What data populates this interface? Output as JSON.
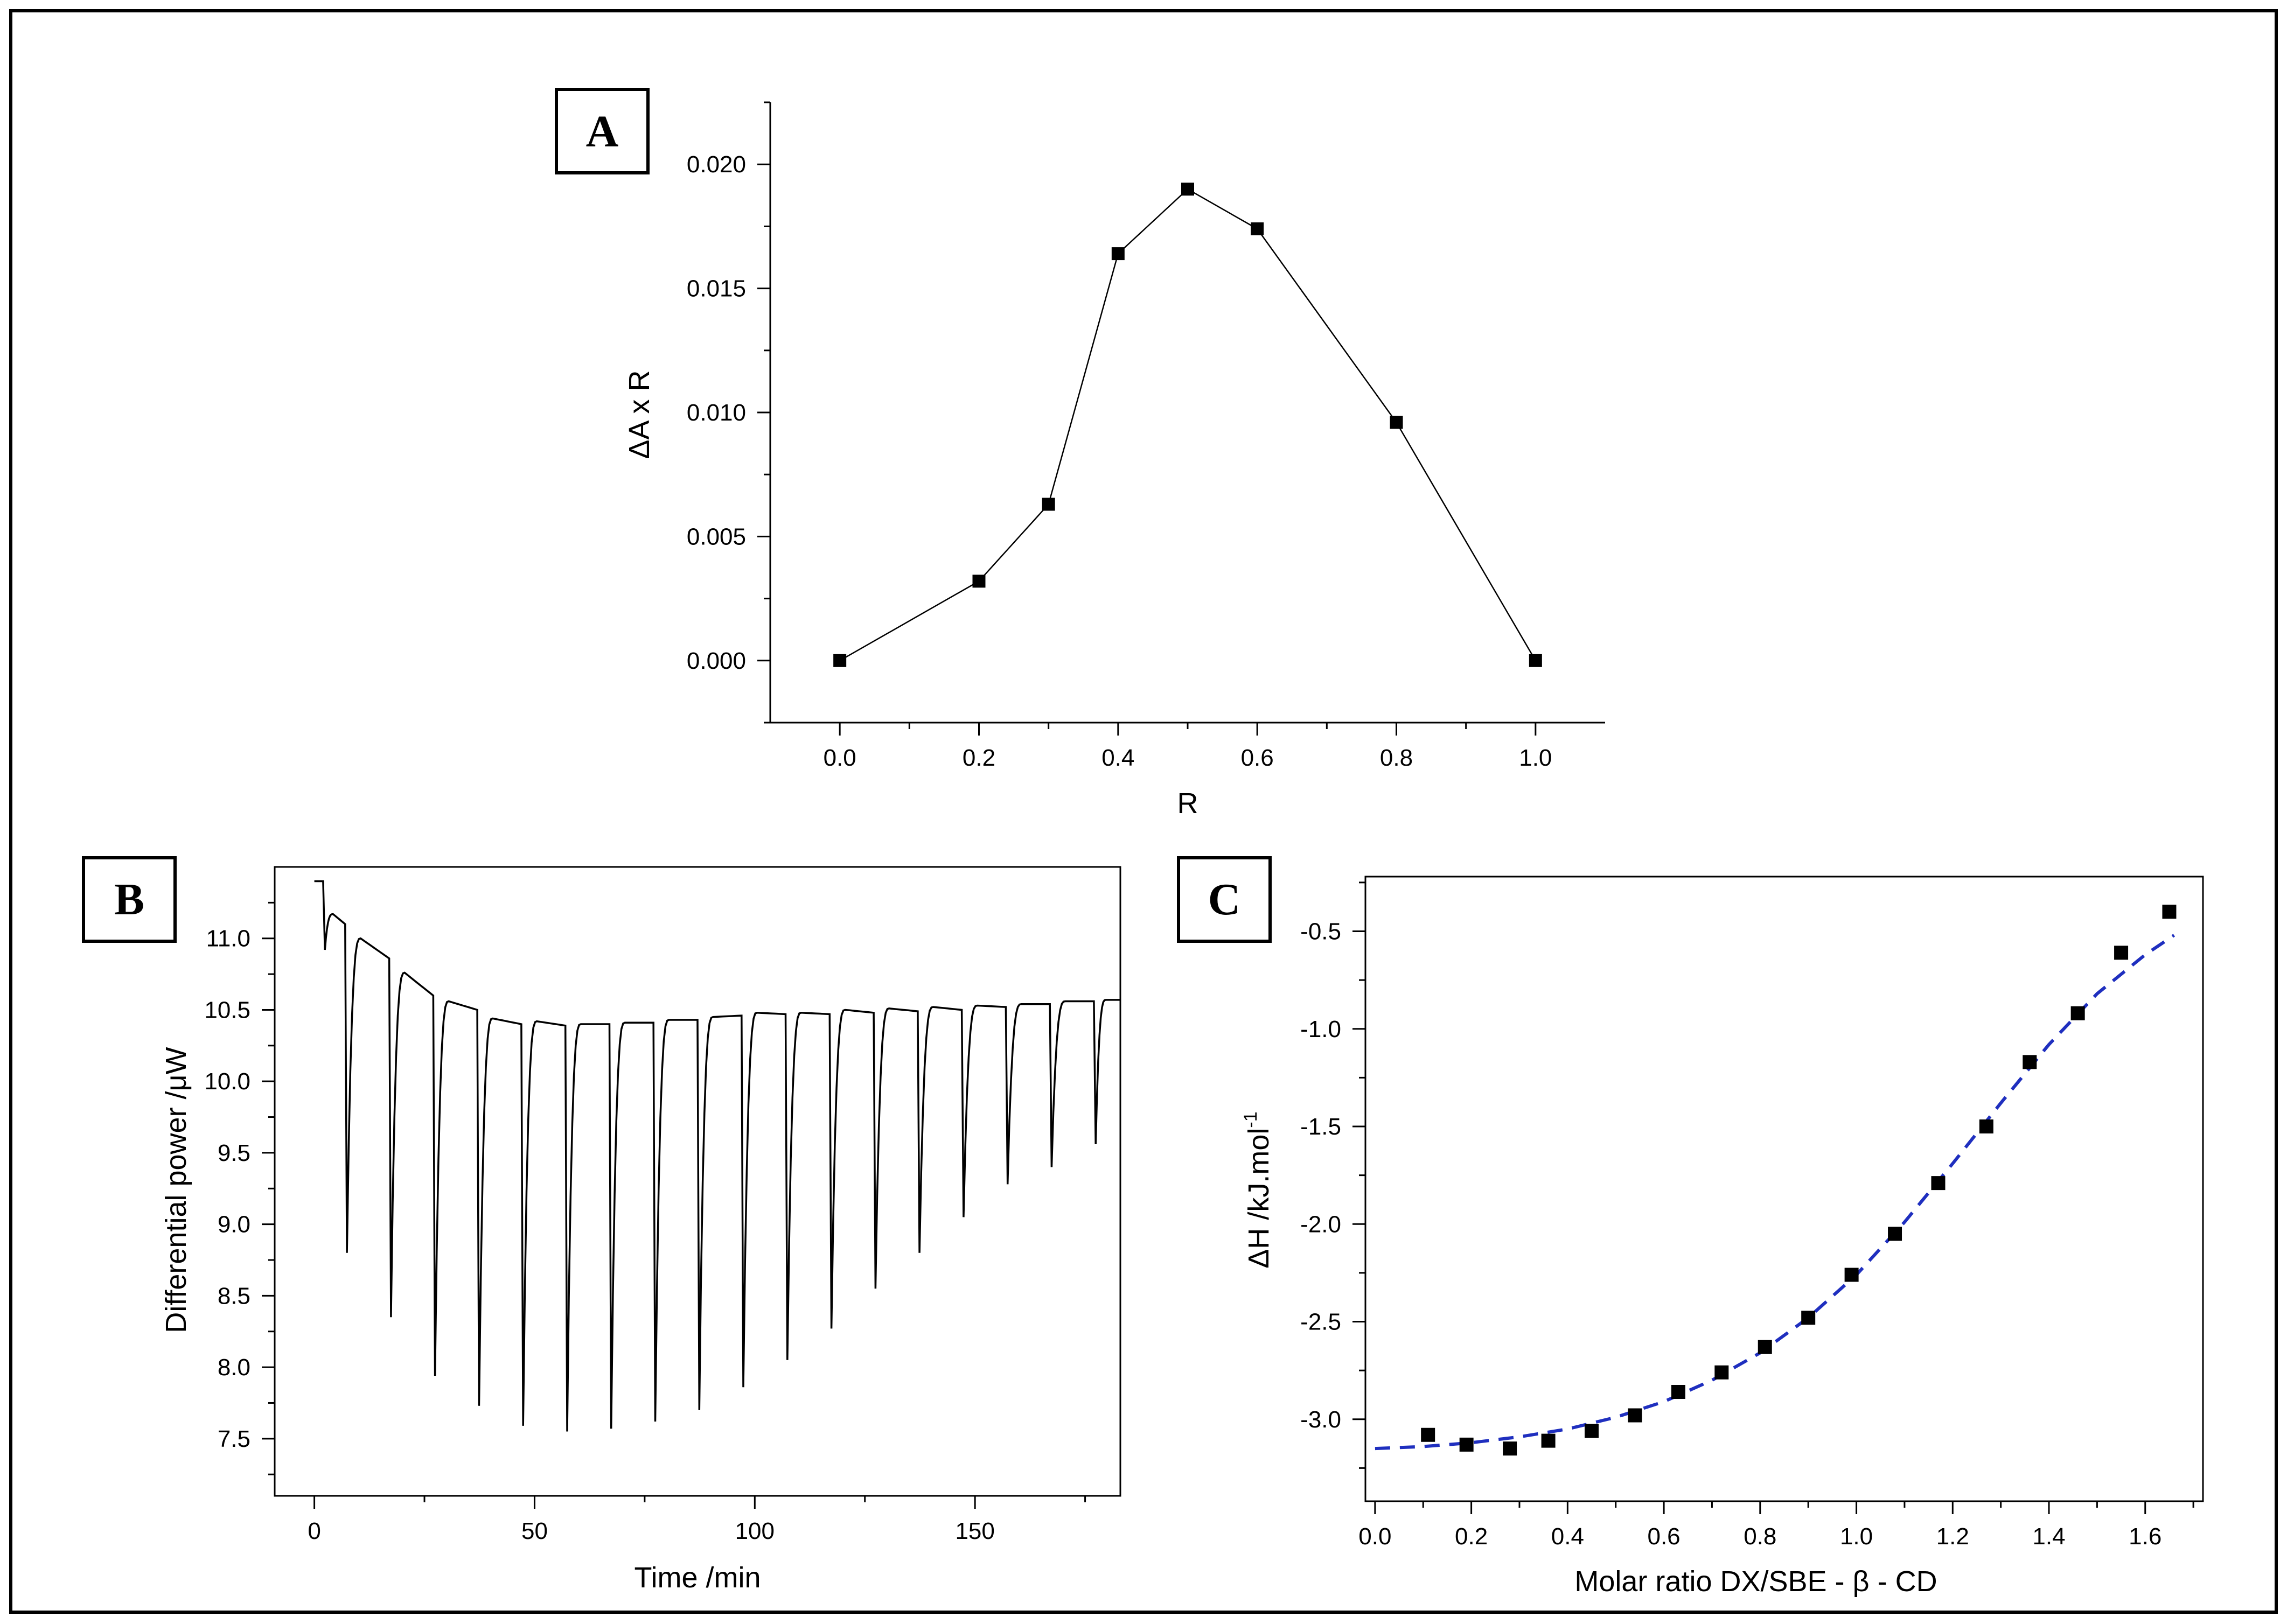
{
  "chart_data": [
    {
      "panel": "A",
      "type": "line",
      "xlabel": "R",
      "ylabel": "ΔA x R",
      "xlim": [
        -0.1,
        1.1
      ],
      "ylim": [
        -0.0025,
        0.0225
      ],
      "xticks": [
        0.0,
        0.2,
        0.4,
        0.6,
        0.8,
        1.0
      ],
      "xtick_labels": [
        "0.0",
        "0.2",
        "0.4",
        "0.6",
        "0.8",
        "1.0"
      ],
      "yticks": [
        0.0,
        0.005,
        0.01,
        0.015,
        0.02
      ],
      "ytick_labels": [
        "0.000",
        "0.005",
        "0.010",
        "0.015",
        "0.020"
      ],
      "x": [
        0.0,
        0.2,
        0.3,
        0.4,
        0.5,
        0.6,
        0.8,
        1.0
      ],
      "y": [
        0.0,
        0.0032,
        0.0063,
        0.0164,
        0.019,
        0.0174,
        0.0096,
        0.0
      ],
      "marker": "square",
      "line_color": "#000000"
    },
    {
      "panel": "B",
      "type": "line",
      "xlabel": "Time /min",
      "ylabel": "Differential power /μW",
      "xlim": [
        -9,
        183
      ],
      "ylim": [
        7.1,
        11.5
      ],
      "xticks": [
        0,
        50,
        100,
        150
      ],
      "xtick_labels": [
        "0",
        "50",
        "100",
        "150"
      ],
      "yticks": [
        7.5,
        8.0,
        8.5,
        9.0,
        9.5,
        10.0,
        10.5,
        11.0
      ],
      "ytick_labels": [
        "7.5",
        "8.0",
        "8.5",
        "9.0",
        "9.5",
        "10.0",
        "10.5",
        "11.0"
      ],
      "baseline_start": 11.4,
      "injection_times": [
        2,
        7,
        17,
        27,
        37,
        47,
        57,
        67,
        77,
        87,
        97,
        107,
        117,
        127,
        137,
        147,
        157,
        167,
        177
      ],
      "peak_minima": [
        10.92,
        8.8,
        8.35,
        7.94,
        7.73,
        7.59,
        7.55,
        7.57,
        7.62,
        7.7,
        7.86,
        8.05,
        8.27,
        8.55,
        8.8,
        9.05,
        9.28,
        9.4,
        9.56
      ],
      "baseline_before_injection": [
        11.4,
        11.1,
        10.86,
        10.6,
        10.5,
        10.4,
        10.39,
        10.4,
        10.41,
        10.43,
        10.46,
        10.47,
        10.47,
        10.48,
        10.49,
        10.5,
        10.52,
        10.54,
        10.56
      ],
      "overshoot_peak": [
        11.17,
        11.0,
        10.76,
        10.56,
        10.44,
        10.42,
        10.4,
        10.41,
        10.43,
        10.45,
        10.48,
        10.48,
        10.5,
        10.51,
        10.52,
        10.53,
        10.54,
        10.56,
        10.57
      ],
      "line_color": "#000000"
    },
    {
      "panel": "C",
      "type": "scatter",
      "xlabel": "Molar ratio DX/SBE - β - CD",
      "ylabel": "ΔH /kJ.mol",
      "ylabel_superscript": "-1",
      "xlim": [
        -0.02,
        1.72
      ],
      "ylim": [
        -3.42,
        -0.22
      ],
      "xticks": [
        0.0,
        0.2,
        0.4,
        0.6,
        0.8,
        1.0,
        1.2,
        1.4,
        1.6
      ],
      "xtick_labels": [
        "0.0",
        "0.2",
        "0.4",
        "0.6",
        "0.8",
        "1.0",
        "1.2",
        "1.4",
        "1.6"
      ],
      "yticks": [
        -3.0,
        -2.5,
        -2.0,
        -1.5,
        -1.0,
        -0.5
      ],
      "ytick_labels": [
        "-3.0",
        "-2.5",
        "-2.0",
        "-1.5",
        "-1.0",
        "-0.5"
      ],
      "x": [
        0.11,
        0.19,
        0.28,
        0.36,
        0.45,
        0.54,
        0.63,
        0.72,
        0.81,
        0.9,
        0.99,
        1.08,
        1.17,
        1.27,
        1.36,
        1.46,
        1.55,
        1.65
      ],
      "y": [
        -3.08,
        -3.13,
        -3.15,
        -3.11,
        -3.06,
        -2.98,
        -2.86,
        -2.76,
        -2.63,
        -2.48,
        -2.26,
        -2.05,
        -1.79,
        -1.5,
        -1.17,
        -0.92,
        -0.61,
        -0.4
      ],
      "fit": {
        "x": [
          0.0,
          0.1,
          0.2,
          0.3,
          0.4,
          0.5,
          0.6,
          0.7,
          0.8,
          0.9,
          1.0,
          1.1,
          1.2,
          1.3,
          1.4,
          1.5,
          1.6,
          1.66
        ],
        "y": [
          -3.15,
          -3.14,
          -3.12,
          -3.09,
          -3.05,
          -2.99,
          -2.91,
          -2.8,
          -2.66,
          -2.48,
          -2.26,
          -1.99,
          -1.69,
          -1.38,
          -1.08,
          -0.82,
          -0.62,
          -0.52
        ],
        "style": "dashed",
        "color": "#1f2fbf"
      }
    }
  ]
}
